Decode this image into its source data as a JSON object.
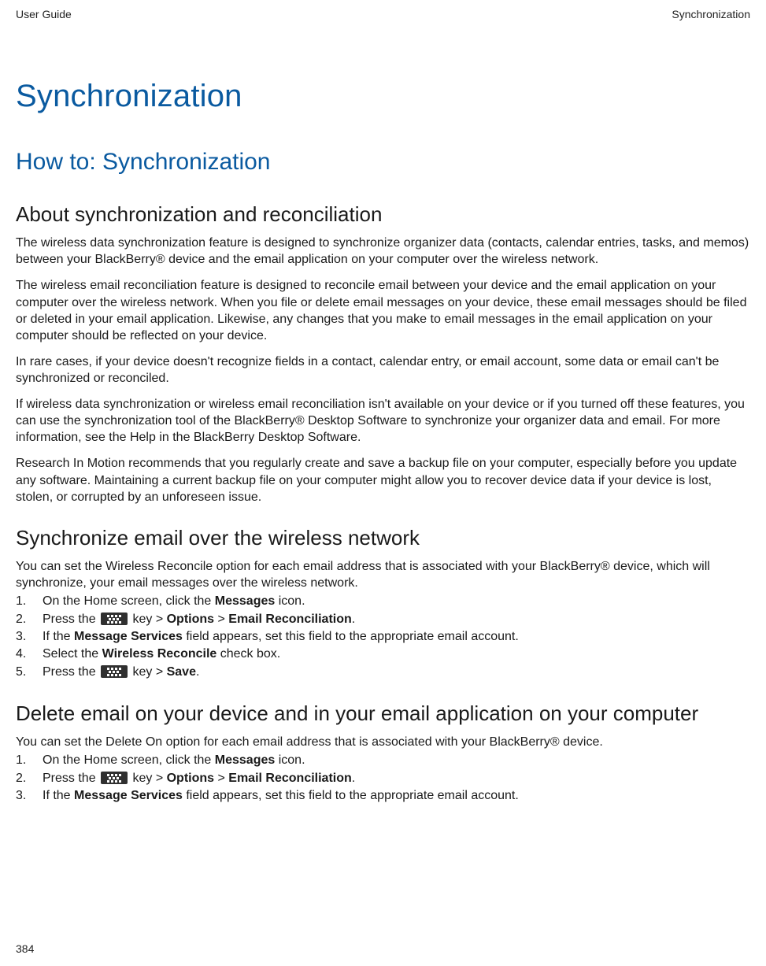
{
  "header": {
    "left": "User Guide",
    "right": "Synchronization"
  },
  "title": "Synchronization",
  "section_howto": "How to: Synchronization",
  "about": {
    "heading": "About synchronization and reconciliation",
    "p1": "The wireless data synchronization feature is designed to synchronize organizer data (contacts, calendar entries, tasks, and memos) between your BlackBerry® device and the email application on your computer over the wireless network.",
    "p2": "The wireless email reconciliation feature is designed to reconcile email between your device and the email application on your computer over the wireless network. When you file or delete email messages on your device, these email messages should be filed or deleted in your email application. Likewise, any changes that you make to email messages in the email application on your computer should be reflected on your device.",
    "p3": "In rare cases, if your device doesn't recognize fields in a contact, calendar entry, or email account, some data or email can't be synchronized or reconciled.",
    "p4": "If wireless data synchronization or wireless email reconciliation isn't available on your device or if you turned off these features, you can use the synchronization tool of the BlackBerry® Desktop Software to synchronize your organizer data and email. For more information, see the Help in the BlackBerry Desktop Software.",
    "p5": "Research In Motion recommends that you regularly create and save a backup file on your computer, especially before you update any software. Maintaining a current backup file on your computer might allow you to recover device data if your device is lost, stolen, or corrupted by an unforeseen issue."
  },
  "sync_email": {
    "heading": "Synchronize email over the wireless network",
    "intro": "You can set the Wireless Reconcile option for each email address that is associated with your BlackBerry® device, which will synchronize, your email messages over the wireless network.",
    "step1_a": "On the Home screen, click the ",
    "step1_b": "Messages",
    "step1_c": " icon.",
    "step2_a": "Press the ",
    "step2_b": " key > ",
    "step2_c": "Options",
    "step2_d": " > ",
    "step2_e": "Email Reconciliation",
    "step2_f": ".",
    "step3_a": "If the ",
    "step3_b": "Message Services",
    "step3_c": " field appears, set this field to the appropriate email account.",
    "step4_a": "Select the ",
    "step4_b": "Wireless Reconcile",
    "step4_c": " check box.",
    "step5_a": "Press the ",
    "step5_b": " key > ",
    "step5_c": "Save",
    "step5_d": "."
  },
  "delete_email": {
    "heading": "Delete email on your device and in your email application on your computer",
    "intro": "You can set the Delete On option for each email address that is associated with your BlackBerry® device.",
    "step1_a": "On the Home screen, click the ",
    "step1_b": "Messages",
    "step1_c": " icon.",
    "step2_a": "Press the ",
    "step2_b": " key > ",
    "step2_c": "Options",
    "step2_d": " > ",
    "step2_e": "Email Reconciliation",
    "step2_f": ".",
    "step3_a": "If the ",
    "step3_b": "Message Services",
    "step3_c": " field appears, set this field to the appropriate email account."
  },
  "footer": {
    "page": "384"
  },
  "colors": {
    "heading_blue": "#0a5aa0",
    "text": "#1a1a1a",
    "background": "#ffffff"
  },
  "typography": {
    "title_size_pt": 30,
    "h2_size_pt": 22,
    "h3_size_pt": 19,
    "body_size_pt": 12,
    "font_family_headings": "Trebuchet MS",
    "font_family_body": "Segoe UI"
  }
}
